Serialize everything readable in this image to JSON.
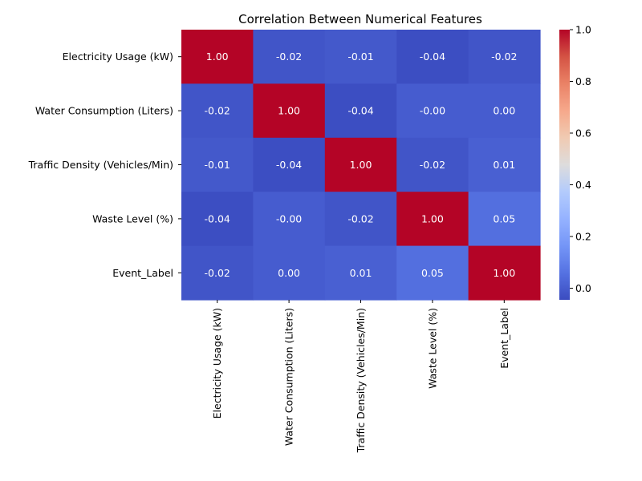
{
  "chart_data": {
    "type": "heatmap",
    "title": "Correlation Between Numerical Features",
    "row_labels": [
      "Electricity Usage (kW)",
      "Water Consumption (Liters)",
      "Traffic Density (Vehicles/Min)",
      "Waste Level (%)",
      "Event_Label"
    ],
    "col_labels": [
      "Electricity Usage (kW)",
      "Water Consumption (Liters)",
      "Traffic Density (Vehicles/Min)",
      "Waste Level (%)",
      "Event_Label"
    ],
    "values": [
      [
        1.0,
        -0.02,
        -0.01,
        -0.04,
        -0.02
      ],
      [
        -0.02,
        1.0,
        -0.04,
        -0.0,
        0.0
      ],
      [
        -0.01,
        -0.04,
        1.0,
        -0.02,
        0.01
      ],
      [
        -0.04,
        -0.0,
        -0.02,
        1.0,
        0.05
      ],
      [
        -0.02,
        0.0,
        0.01,
        0.05,
        1.0
      ]
    ],
    "value_labels": [
      [
        "1.00",
        "-0.02",
        "-0.01",
        "-0.04",
        "-0.02"
      ],
      [
        "-0.02",
        "1.00",
        "-0.04",
        "-0.00",
        "0.00"
      ],
      [
        "-0.01",
        "-0.04",
        "1.00",
        "-0.02",
        "0.01"
      ],
      [
        "-0.04",
        "-0.00",
        "-0.02",
        "1.00",
        "0.05"
      ],
      [
        "-0.02",
        "0.00",
        "0.01",
        "0.05",
        "1.00"
      ]
    ],
    "colormap": "coolwarm",
    "vmin": -0.045,
    "vmax": 1.0,
    "colorbar_ticks": [
      0.0,
      0.2,
      0.4,
      0.6,
      0.8,
      1.0
    ],
    "colorbar_tick_labels": [
      "0.0",
      "0.2",
      "0.4",
      "0.6",
      "0.8",
      "1.0"
    ],
    "grid": false
  }
}
